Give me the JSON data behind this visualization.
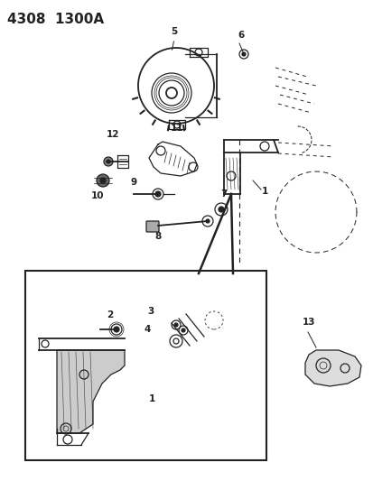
{
  "title": "4308  1300A",
  "bg_color": "#ffffff",
  "fig_width": 4.14,
  "fig_height": 5.33,
  "dpi": 100,
  "line_color": "#222222",
  "label_fontsize": 7.5,
  "title_fontsize": 11
}
